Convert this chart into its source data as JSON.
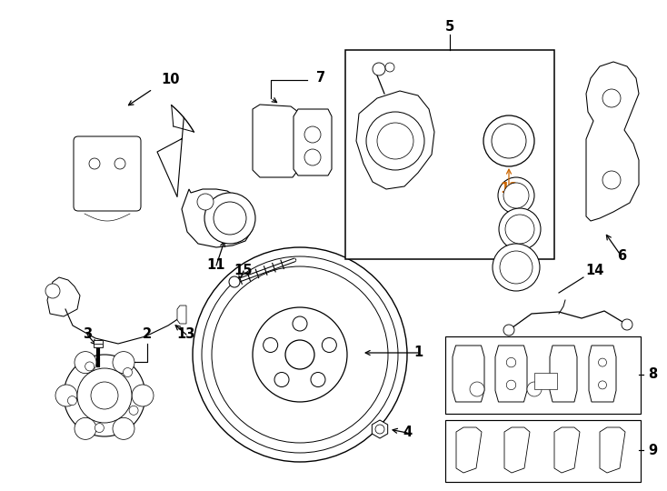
{
  "bg_color": "#ffffff",
  "line_color": "#000000",
  "label_color_12": "#cc6600",
  "fig_w": 7.34,
  "fig_h": 5.4,
  "dpi": 100,
  "label_fontsize": 10,
  "label_fontsize_small": 9,
  "arrow_lw": 0.8,
  "part_lw": 0.9
}
